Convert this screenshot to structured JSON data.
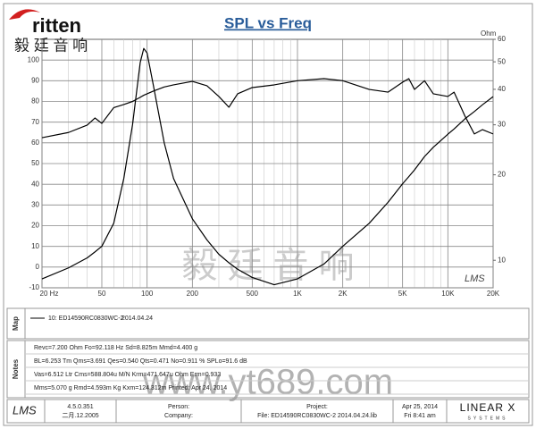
{
  "chart_data": {
    "type": "line",
    "title": "SPL vs Freq",
    "y2label": "Ohm",
    "xscale": "log",
    "y2scale": "log",
    "grid": true,
    "x": [
      20,
      30,
      40,
      45,
      50,
      60,
      70,
      80,
      90,
      95,
      100,
      110,
      130,
      150,
      200,
      250,
      300,
      350,
      400,
      500,
      700,
      1000,
      1500,
      2000,
      3000,
      4000,
      5000,
      5500,
      6000,
      7000,
      8000,
      10000,
      11000,
      13000,
      15000,
      17000,
      20000
    ],
    "series": [
      {
        "color": "#000000",
        "values": [
          62.5,
          65,
          68.6,
          72,
          69.4,
          77,
          78.5,
          80,
          82,
          83,
          83.7,
          85,
          87,
          88,
          89.7,
          87.6,
          82.4,
          77.2,
          83.7,
          86.7,
          88,
          90,
          91,
          90,
          85.8,
          84.5,
          89.3,
          91,
          85.8,
          90,
          83.7,
          82.4,
          84.5,
          72.9,
          64.3,
          66.4,
          64.3
        ]
      },
      {
        "color": "#000000",
        "axis": "y2",
        "values": [
          8.6,
          9.4,
          10.2,
          10.7,
          11.2,
          13.5,
          19.4,
          30,
          49.7,
          55.7,
          53.7,
          41.4,
          25.9,
          19.4,
          14,
          11.8,
          10.5,
          9.8,
          9.3,
          8.7,
          8.2,
          8.6,
          9.7,
          11.2,
          13.5,
          16,
          18.6,
          19.7,
          20.8,
          23.2,
          25,
          27.8,
          29,
          31.5,
          33.4,
          35.3,
          37.7
        ]
      }
    ],
    "xlim": [
      20,
      20000
    ],
    "xticks": [
      {
        "value": 20,
        "label": "20 Hz"
      },
      50,
      100,
      200,
      500,
      {
        "value": 1000,
        "label": "1K"
      },
      {
        "value": 2000,
        "label": "2K"
      },
      {
        "value": 5000,
        "label": "5K"
      },
      {
        "value": 10000,
        "label": "10K"
      },
      {
        "value": 20000,
        "label": "20K"
      }
    ],
    "xminorticks": [
      30,
      40,
      60,
      70,
      80,
      90,
      300,
      400,
      600,
      700,
      800,
      900,
      3000,
      4000,
      6000,
      7000,
      8000,
      9000
    ],
    "ylim": [
      -10,
      110
    ],
    "yticks": [
      -10,
      0,
      10,
      20,
      30,
      40,
      50,
      60,
      70,
      80,
      90,
      100
    ],
    "y2lim": [
      8,
      60
    ],
    "y2ticks": [
      10,
      20,
      30,
      40,
      50,
      60
    ]
  },
  "logo": {
    "brand": "ritten",
    "chinese": "毅 廷 音 响"
  },
  "plot_mark": "LMS",
  "watermark": [
    "毅 廷 音 响",
    "www.yt689.com"
  ],
  "map": {
    "label": "Map",
    "entry": "10: ED14590RC0830WC-2",
    "date": "2014.04.24"
  },
  "notes": {
    "label": "Notes",
    "lines": [
      "Revc=7.200 Ohm  Fo=92.118 Hz  Sd=8.825m  Mmd=4.400 g",
      "BL=6.253 Tm  Qms=3.691  Qes=0.540  Qts=0.471  No=0.911 %  SPLo=91.6 dB",
      "Vas=6.512 Ltr  Cms=588.804u M/N  Krm=471.647u Ohm  Erm=0.933",
      "Mms=5.070 g  Rmd=4.593m Kg  Kxm=124.312m  Printed: Apr 24, 2014"
    ]
  },
  "footer": {
    "logo": "LMS",
    "version": "4.5.0.351",
    "build": "二月.12.2005",
    "person": "Person:",
    "company": "Company:",
    "project": "Project:",
    "file": "File: ED14590RC0830WC-2 2014.04.24.lib",
    "date": "Apr 25, 2014",
    "time": "Fri  8:41 am",
    "brand": "LINEAR X",
    "brand_sub": "SYSTEMS"
  }
}
